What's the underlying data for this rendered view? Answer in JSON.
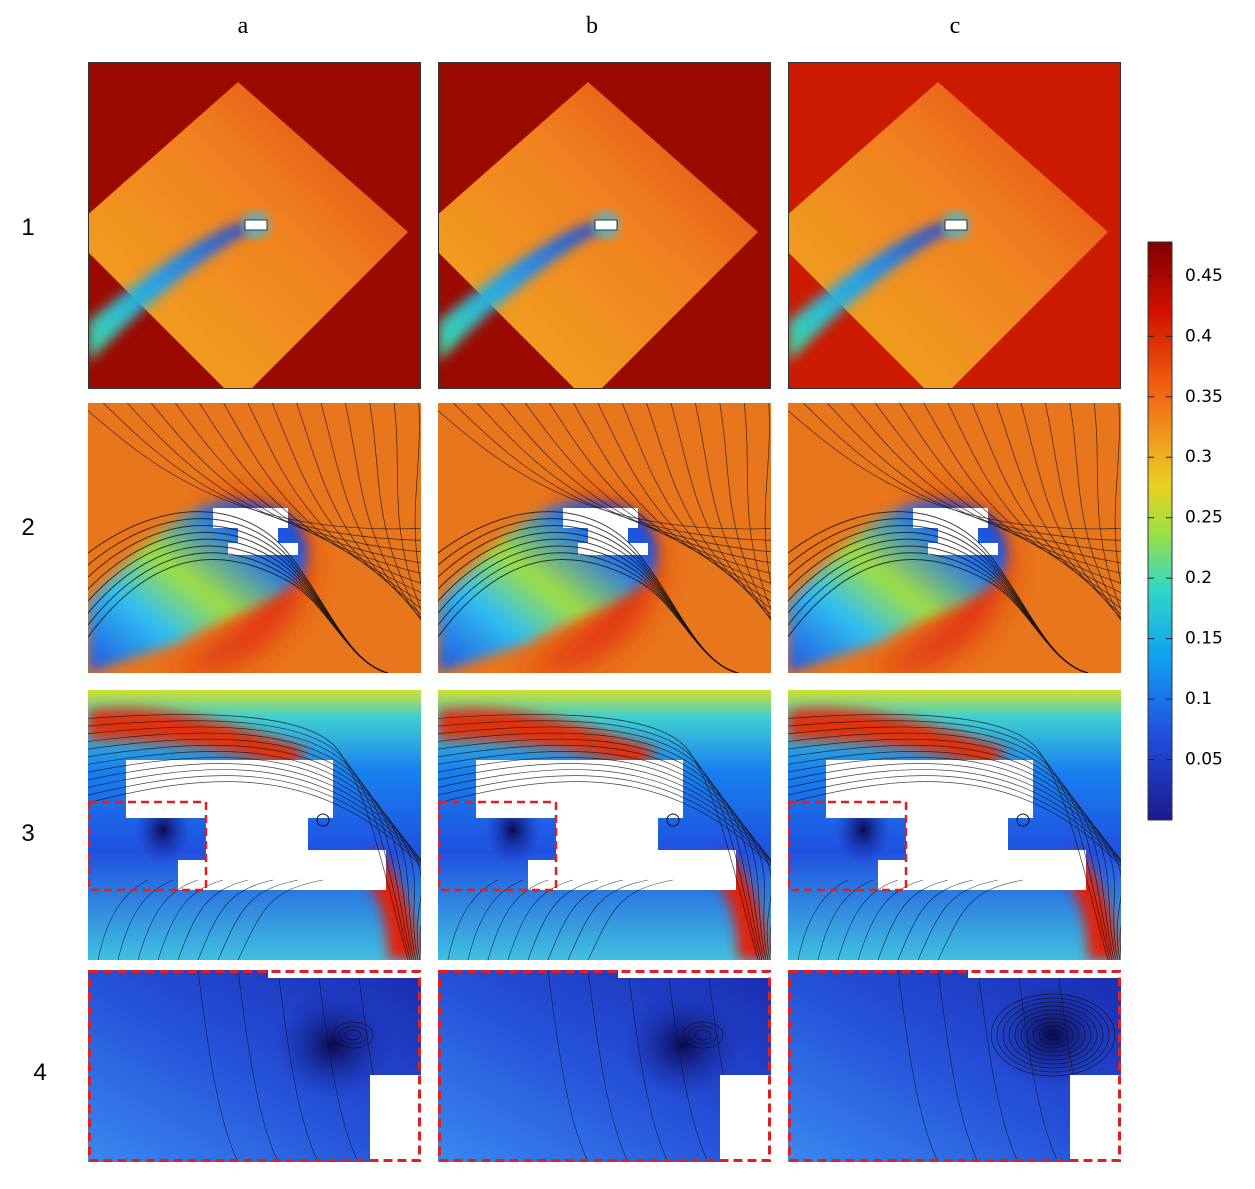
{
  "columns": [
    "a",
    "b",
    "c"
  ],
  "rows": [
    "1",
    "2",
    "3",
    "4"
  ],
  "colorbar": {
    "lim": [
      0,
      0.478
    ],
    "ticks": [
      0.05,
      0.1,
      0.15,
      0.2,
      0.25,
      0.3,
      0.35,
      0.4,
      0.45
    ]
  }
}
